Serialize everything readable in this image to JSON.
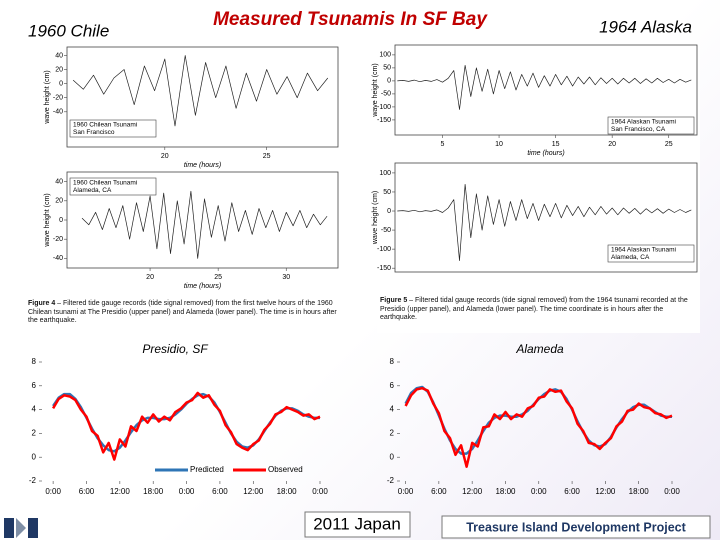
{
  "header": {
    "left": "1960 Chile",
    "title": "Measured Tsunamis In SF Bay",
    "right": "1964 Alaska"
  },
  "captions": [
    {
      "label": "Figure 4",
      "text": " – Filtered tide gauge records (tide signal removed) from the first twelve hours of the 1960 Chilean tsunami at The Presidio (upper panel) and Alameda (lower panel). The time is in hours after the earthquake."
    },
    {
      "label": "Figure 5",
      "text": " – Filtered tidal gauge records (tide signal removed) from the 1964 tsunami recorded at the Presidio (upper panel), and Alameda (lower panel). The time coordinate is in hours after the earthquake."
    }
  ],
  "footer": {
    "center": "2011 Japan",
    "right": "Treasure Island Development Project"
  },
  "chart_data": [
    {
      "type": "line",
      "title": "1960 Chilean Tsunami",
      "subtitle": "San Francisco",
      "ylabel": "wave height (cm)",
      "xlabel": "time (hours)",
      "xlim": [
        15.2,
        28.5
      ],
      "xticks": [
        20,
        25
      ],
      "ylim": [
        -90,
        52
      ],
      "yticks": [
        40,
        20,
        0,
        -20,
        -40
      ],
      "x": [
        15.5,
        16,
        16.5,
        17,
        17.5,
        18,
        18.5,
        19,
        19.5,
        20,
        20.5,
        21,
        21.5,
        22,
        22.5,
        23,
        23.5,
        24,
        24.5,
        25,
        25.5,
        26,
        26.5,
        27,
        27.5,
        28
      ],
      "series": [
        {
          "color": "#222222",
          "values": [
            5,
            -8,
            12,
            -15,
            8,
            20,
            -30,
            25,
            -10,
            35,
            -60,
            40,
            -45,
            30,
            -20,
            25,
            -35,
            15,
            -25,
            20,
            -15,
            10,
            -20,
            15,
            -10,
            8
          ]
        }
      ]
    },
    {
      "type": "line",
      "title": "1960 Chilean Tsunami",
      "subtitle": "Alameda, CA",
      "ylabel": "wave height (cm)",
      "xlabel": "time (hours)",
      "xlim": [
        13.9,
        33.8
      ],
      "xticks": [
        20,
        25,
        30
      ],
      "ylim": [
        -50,
        50
      ],
      "yticks": [
        40,
        20,
        0,
        -20,
        -40
      ],
      "x": [
        15,
        15.5,
        16,
        16.5,
        17,
        17.5,
        18,
        18.5,
        19,
        19.5,
        20,
        20.5,
        21,
        21.5,
        22,
        22.5,
        23,
        23.5,
        24,
        24.5,
        25,
        25.5,
        26,
        26.5,
        27,
        27.5,
        28,
        28.5,
        29,
        29.5,
        30,
        30.5,
        31,
        31.5,
        32,
        32.5,
        33
      ],
      "series": [
        {
          "color": "#222222",
          "values": [
            2,
            -5,
            8,
            -10,
            12,
            -8,
            15,
            -20,
            18,
            -12,
            25,
            -30,
            28,
            -35,
            20,
            -25,
            30,
            -40,
            22,
            -18,
            15,
            -22,
            18,
            -12,
            10,
            -15,
            12,
            -8,
            10,
            -12,
            8,
            -6,
            10,
            -8,
            6,
            -5,
            4
          ]
        }
      ]
    },
    {
      "type": "line",
      "title": "1964 Alaskan Tsunami",
      "subtitle": "San Francisco, CA",
      "ylabel": "wave height (cm)",
      "xlabel": "time (hours)",
      "xlim": [
        0.8,
        27.5
      ],
      "xticks": [
        5,
        10,
        15,
        20,
        25
      ],
      "ylim": [
        -208,
        138
      ],
      "yticks": [
        100,
        50,
        0,
        -50,
        -100,
        -150
      ],
      "x": [
        1,
        1.5,
        2,
        2.5,
        3,
        3.5,
        4,
        4.5,
        5,
        5.5,
        6,
        6.5,
        7,
        7.5,
        8,
        8.5,
        9,
        9.5,
        10,
        10.5,
        11,
        11.5,
        12,
        12.5,
        13,
        13.5,
        14,
        14.5,
        15,
        15.5,
        16,
        16.5,
        17,
        17.5,
        18,
        18.5,
        19,
        19.5,
        20,
        20.5,
        21,
        21.5,
        22,
        22.5,
        23,
        23.5,
        24,
        24.5,
        25,
        25.5,
        26,
        26.5,
        27
      ],
      "series": [
        {
          "color": "#222222",
          "values": [
            0,
            2,
            -2,
            3,
            -3,
            2,
            -2,
            5,
            -5,
            10,
            40,
            -110,
            60,
            -60,
            50,
            -40,
            45,
            -50,
            40,
            -30,
            35,
            -35,
            25,
            -20,
            30,
            -25,
            20,
            -20,
            25,
            -15,
            18,
            -20,
            15,
            -12,
            15,
            -15,
            12,
            -10,
            10,
            -12,
            10,
            -8,
            10,
            -10,
            8,
            -8,
            10,
            -6,
            6,
            -8,
            6,
            -5,
            4
          ]
        }
      ]
    },
    {
      "type": "line",
      "title": "1964 Alaskan Tsunami",
      "subtitle": "Alameda, CA",
      "ylabel": "wave height (cm)",
      "xlim": [
        0.8,
        27.5
      ],
      "ylim": [
        -160,
        126
      ],
      "yticks": [
        100,
        50,
        0,
        -50,
        -100,
        -150
      ],
      "x": [
        1,
        1.5,
        2,
        2.5,
        3,
        3.5,
        4,
        4.5,
        5,
        5.5,
        6,
        6.5,
        7,
        7.5,
        8,
        8.5,
        9,
        9.5,
        10,
        10.5,
        11,
        11.5,
        12,
        12.5,
        13,
        13.5,
        14,
        14.5,
        15,
        15.5,
        16,
        16.5,
        17,
        17.5,
        18,
        18.5,
        19,
        19.5,
        20,
        20.5,
        21,
        21.5,
        22,
        22.5,
        23,
        23.5,
        24,
        24.5,
        25,
        25.5,
        26,
        26.5,
        27
      ],
      "series": [
        {
          "color": "#222222",
          "values": [
            0,
            1,
            -1,
            2,
            -2,
            1,
            -1,
            3,
            -4,
            8,
            30,
            -130,
            70,
            -70,
            45,
            -50,
            40,
            -35,
            30,
            -40,
            25,
            -25,
            30,
            -20,
            20,
            -25,
            18,
            -15,
            20,
            -18,
            15,
            -12,
            12,
            -15,
            10,
            -10,
            12,
            -8,
            8,
            -10,
            8,
            -6,
            7,
            -8,
            6,
            -5,
            6,
            -6,
            5,
            -4,
            4,
            -4,
            3
          ]
        }
      ]
    },
    {
      "type": "line",
      "title": "Presidio, SF",
      "legend": "bottom-right",
      "xlim": [
        -2,
        48
      ],
      "xticks": [
        {
          "value": 0,
          "label": "0:00"
        },
        {
          "value": 6,
          "label": "6:00"
        },
        {
          "value": 12,
          "label": "12:00"
        },
        {
          "value": 18,
          "label": "18:00"
        },
        {
          "value": 24,
          "label": "0:00"
        },
        {
          "value": 30,
          "label": "6:00"
        },
        {
          "value": 36,
          "label": "12:00"
        },
        {
          "value": 42,
          "label": "18:00"
        },
        {
          "value": 48,
          "label": "0:00"
        }
      ],
      "ylim": [
        -2,
        8
      ],
      "yticks": [
        8,
        6,
        4,
        2,
        0,
        -2
      ],
      "x": [
        0,
        1,
        2,
        3,
        4,
        5,
        6,
        7,
        8,
        9,
        10,
        11,
        12,
        13,
        14,
        15,
        16,
        17,
        18,
        19,
        20,
        21,
        22,
        23,
        24,
        25,
        26,
        27,
        28,
        29,
        30,
        31,
        32,
        33,
        34,
        35,
        36,
        37,
        38,
        39,
        40,
        41,
        42,
        43,
        44,
        45,
        46,
        47,
        48
      ],
      "series": [
        {
          "name": "Predicted",
          "color": "#2e75b6",
          "values": [
            4.3,
            5.0,
            5.3,
            5.3,
            4.9,
            4.2,
            3.3,
            2.4,
            1.6,
            1.0,
            0.6,
            0.5,
            0.8,
            1.4,
            2.1,
            2.7,
            3.1,
            3.3,
            3.3,
            3.2,
            3.2,
            3.3,
            3.6,
            4.0,
            4.5,
            4.9,
            5.2,
            5.3,
            5.1,
            4.6,
            3.8,
            2.9,
            2.0,
            1.3,
            0.9,
            0.8,
            1.0,
            1.5,
            2.2,
            2.9,
            3.5,
            3.9,
            4.1,
            4.1,
            3.9,
            3.6,
            3.4,
            3.3,
            3.3
          ]
        },
        {
          "name": "Observed",
          "color": "#ff0000",
          "values": [
            4.1,
            4.9,
            5.2,
            5.1,
            4.8,
            4.0,
            3.4,
            2.2,
            1.8,
            0.4,
            1.2,
            -0.2,
            1.5,
            0.9,
            2.6,
            2.2,
            3.4,
            2.9,
            3.6,
            3.0,
            3.4,
            3.1,
            3.8,
            4.1,
            4.6,
            4.8,
            5.4,
            5.0,
            5.2,
            4.4,
            3.9,
            2.7,
            2.1,
            1.1,
            0.8,
            0.6,
            1.1,
            1.4,
            2.3,
            2.8,
            3.6,
            3.8,
            4.2,
            4.0,
            3.8,
            3.5,
            3.6,
            3.2,
            3.4
          ]
        }
      ]
    },
    {
      "type": "line",
      "title": "Alameda",
      "xlim": [
        -1,
        48
      ],
      "xticks": [
        {
          "value": 0,
          "label": "0:00"
        },
        {
          "value": 6,
          "label": "6:00"
        },
        {
          "value": 12,
          "label": "12:00"
        },
        {
          "value": 18,
          "label": "18:00"
        },
        {
          "value": 24,
          "label": "0:00"
        },
        {
          "value": 30,
          "label": "6:00"
        },
        {
          "value": 36,
          "label": "12:00"
        },
        {
          "value": 42,
          "label": "18:00"
        },
        {
          "value": 48,
          "label": "0:00"
        }
      ],
      "ylim": [
        -2,
        8
      ],
      "yticks": [
        8,
        6,
        4,
        2,
        0,
        -2
      ],
      "x": [
        0,
        1,
        2,
        3,
        4,
        5,
        6,
        7,
        8,
        9,
        10,
        11,
        12,
        13,
        14,
        15,
        16,
        17,
        18,
        19,
        20,
        21,
        22,
        23,
        24,
        25,
        26,
        27,
        28,
        29,
        30,
        31,
        32,
        33,
        34,
        35,
        36,
        37,
        38,
        39,
        40,
        41,
        42,
        43,
        44,
        45,
        46,
        47,
        48
      ],
      "series": [
        {
          "color": "#2e75b6",
          "values": [
            4.5,
            5.4,
            5.8,
            5.9,
            5.5,
            4.6,
            3.5,
            2.4,
            1.4,
            0.7,
            0.3,
            0.3,
            0.7,
            1.4,
            2.2,
            2.9,
            3.3,
            3.5,
            3.5,
            3.4,
            3.4,
            3.6,
            3.9,
            4.4,
            4.9,
            5.3,
            5.6,
            5.7,
            5.5,
            4.9,
            4.0,
            3.0,
            2.1,
            1.4,
            1.0,
            0.9,
            1.1,
            1.7,
            2.5,
            3.2,
            3.8,
            4.2,
            4.4,
            4.4,
            4.1,
            3.8,
            3.5,
            3.4,
            3.4
          ]
        },
        {
          "color": "#ff0000",
          "values": [
            4.3,
            5.2,
            5.7,
            5.8,
            5.6,
            4.5,
            3.7,
            2.2,
            1.6,
            0.2,
            1.0,
            -0.8,
            1.2,
            0.9,
            2.5,
            2.6,
            3.6,
            3.2,
            3.8,
            3.2,
            3.6,
            3.4,
            4.1,
            4.3,
            5.0,
            5.1,
            5.7,
            5.5,
            5.6,
            4.7,
            4.1,
            2.8,
            2.2,
            1.2,
            1.1,
            0.7,
            1.2,
            1.6,
            2.6,
            3.0,
            3.9,
            4.0,
            4.5,
            4.2,
            4.1,
            3.7,
            3.6,
            3.3,
            3.5
          ]
        }
      ]
    }
  ]
}
